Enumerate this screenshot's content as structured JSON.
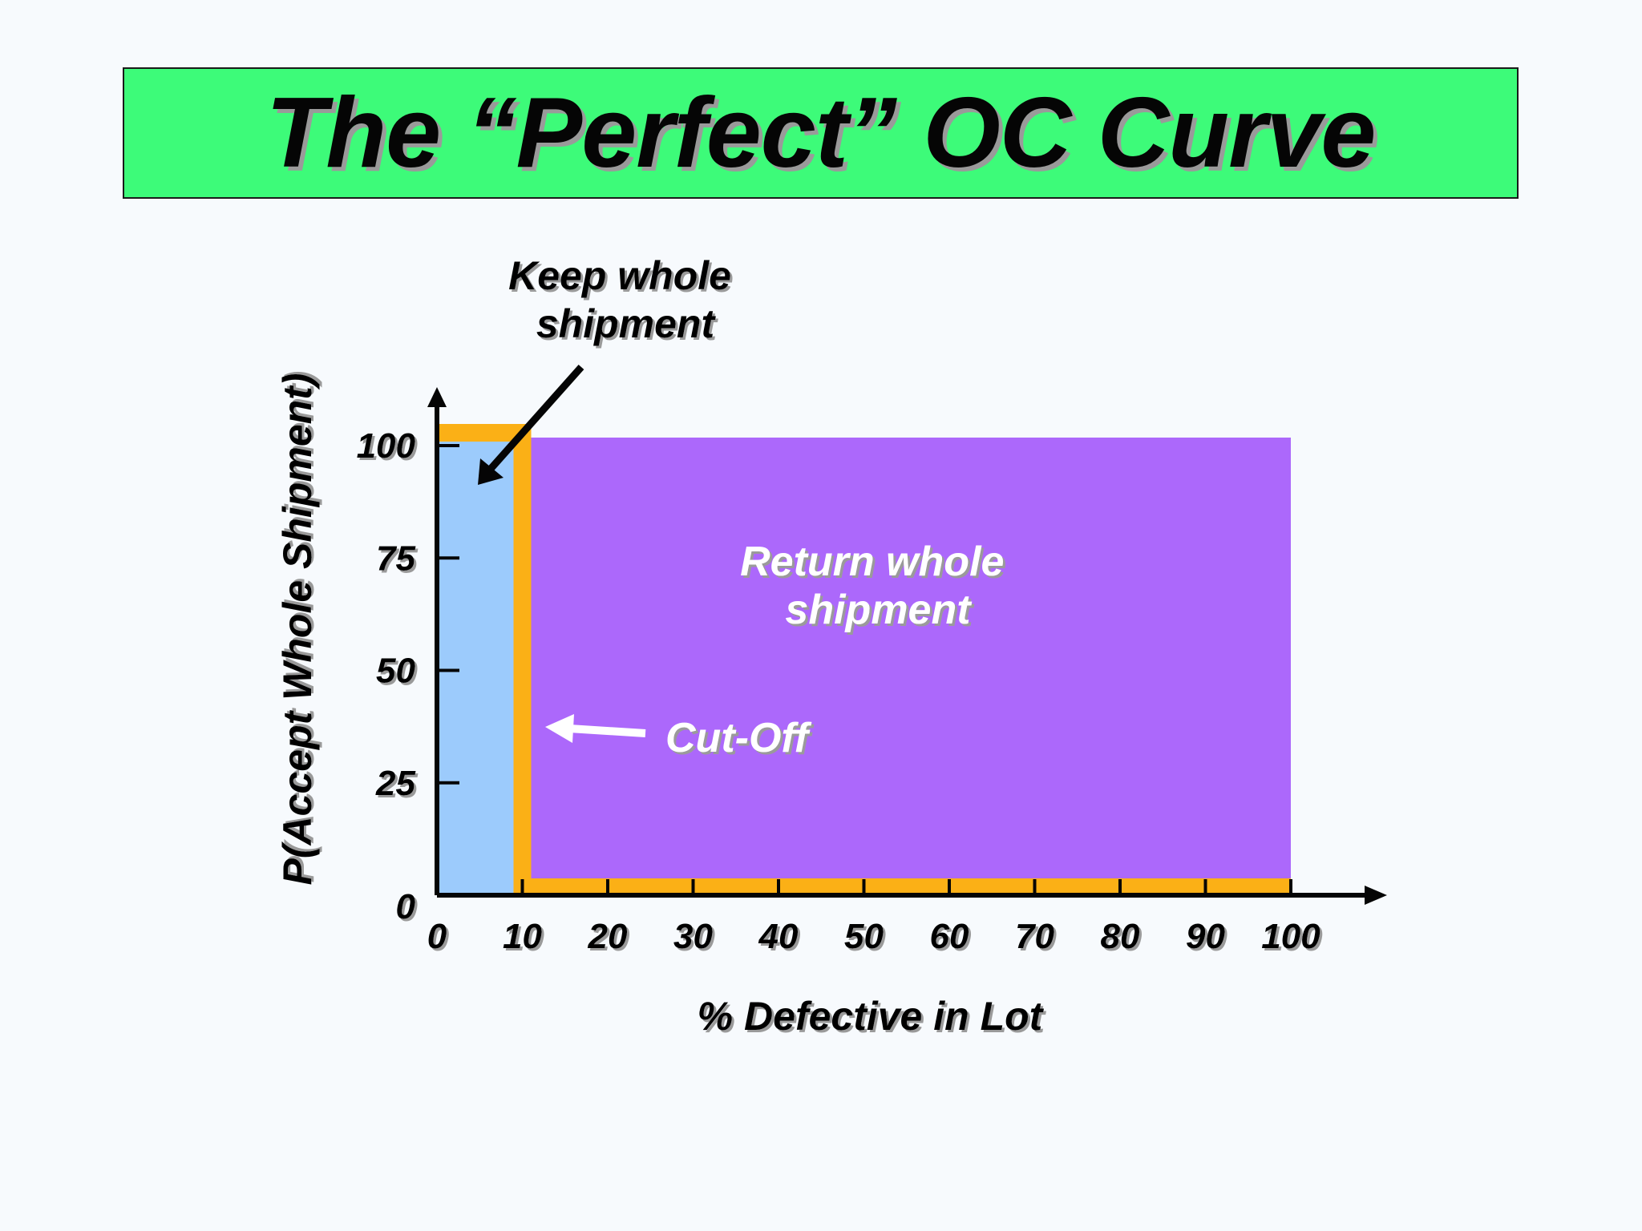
{
  "title": "The “Perfect” OC Curve",
  "colors": {
    "title_bg": "#3dfb79",
    "accept_region": "#9ccbfc",
    "reject_region": "#ac68fb",
    "curve": "#fbb016",
    "text_dark": "#050505",
    "text_light": "#ffffff"
  },
  "chart_data": {
    "type": "line",
    "xlabel": "% Defective in Lot",
    "ylabel": "P(Accept Whole Shipment)",
    "xlim": [
      0,
      100
    ],
    "ylim": [
      0,
      100
    ],
    "x_ticks": [
      0,
      10,
      20,
      30,
      40,
      50,
      60,
      70,
      80,
      90,
      100
    ],
    "y_ticks": [
      0,
      25,
      50,
      75,
      100
    ],
    "x_tick_labels": [
      "0",
      "10",
      "20",
      "30",
      "40",
      "50",
      "60",
      "70",
      "80",
      "90",
      "100"
    ],
    "y_tick_labels": [
      "0",
      "25",
      "50",
      "75",
      "100"
    ],
    "cutoff": 10,
    "series": [
      {
        "x": [
          0,
          10,
          10,
          100
        ],
        "y": [
          100,
          100,
          0,
          0
        ]
      }
    ],
    "regions": [
      {
        "label": "Keep whole shipment",
        "x_range": [
          0,
          10
        ]
      },
      {
        "label": "Return whole shipment",
        "x_range": [
          10,
          100
        ]
      }
    ],
    "annotations": [
      {
        "text": "Keep whole shipment",
        "lines": [
          "Keep whole",
          "shipment"
        ]
      },
      {
        "text": "Return whole shipment",
        "lines": [
          "Return whole",
          "shipment"
        ]
      },
      {
        "text": "Cut-Off"
      }
    ],
    "grid": false,
    "legend": "none"
  }
}
